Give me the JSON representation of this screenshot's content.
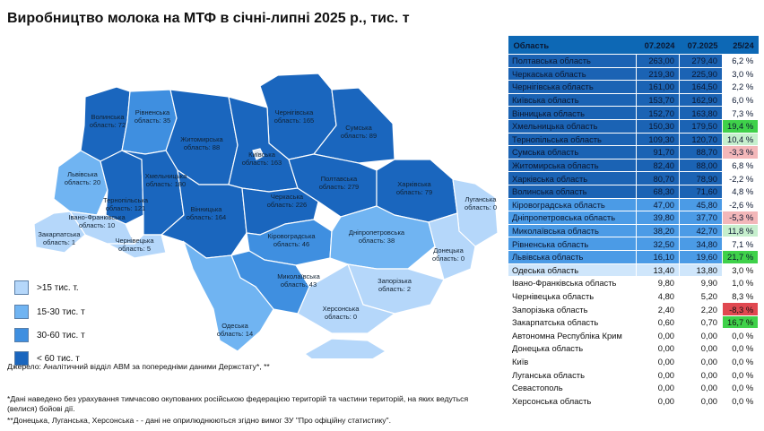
{
  "title": "Виробництво молока на МТФ в січні-липні 2025 р., тис. т",
  "colors": {
    "lt15": "#b5d7fa",
    "r15_30": "#70b4f2",
    "r30_60": "#3f8fe0",
    "gt60": "#1a66be",
    "stroke": "#ffffff"
  },
  "legend": [
    {
      "label": ">15 тис. т.",
      "color": "#b5d7fa"
    },
    {
      "label": "15-30 тис. т",
      "color": "#70b4f2"
    },
    {
      "label": "30-60 тис. т",
      "color": "#3f8fe0"
    },
    {
      "label": "< 60 тис. т",
      "color": "#1a66be"
    }
  ],
  "notes": {
    "source": "Джерело: Аналітичний відділ АВМ за попередніми даними Держстату*, **",
    "note1": "*Дані наведено без урахування тимчасово окупованих російською федерацією територій та частини територій, на яких ведуться (велися) бойові дії.",
    "note2": "**Донецька, Луганська, Херсонська - - дані не оприлюднюються згідно вимог ЗУ \"Про офіційну статистику\"."
  },
  "map_labels": [
    {
      "l1": "Волинська",
      "l2": "область: 72"
    },
    {
      "l1": "Рівненська",
      "l2": "область: 35"
    },
    {
      "l1": "Житомирська",
      "l2": "область: 88"
    },
    {
      "l1": "Чернігівська",
      "l2": "область: 165"
    },
    {
      "l1": "Сумська",
      "l2": "область: 89"
    },
    {
      "l1": "Київська",
      "l2": "область: 163"
    },
    {
      "l1": "Львівська",
      "l2": "область: 20"
    },
    {
      "l1": "Хмельницька",
      "l2": "область: 180"
    },
    {
      "l1": "Тернопільська",
      "l2": "область: 121"
    },
    {
      "l1": "Вінницька",
      "l2": "область: 164"
    },
    {
      "l1": "Черкаська",
      "l2": "область: 226"
    },
    {
      "l1": "Полтавська",
      "l2": "область: 279"
    },
    {
      "l1": "Харківська",
      "l2": "область: 79"
    },
    {
      "l1": "Луганська",
      "l2": "область: 0"
    },
    {
      "l1": "Івано-Франківська",
      "l2": "область: 10"
    },
    {
      "l1": "Закарпатська",
      "l2": "область: 1"
    },
    {
      "l1": "Чернівецька",
      "l2": "область: 5"
    },
    {
      "l1": "Кіровоградська",
      "l2": "область: 46"
    },
    {
      "l1": "Дніпропетровська",
      "l2": "область: 38"
    },
    {
      "l1": "Донецька",
      "l2": "область: 0"
    },
    {
      "l1": "Миколаївська",
      "l2": "область: 43"
    },
    {
      "l1": "Запорізька",
      "l2": "область: 2"
    },
    {
      "l1": "Херсонська",
      "l2": "область: 0"
    },
    {
      "l1": "Одеська",
      "l2": "область: 14"
    }
  ],
  "table": {
    "headers": [
      "Область",
      "07.2024",
      "07.2025",
      "25/24"
    ],
    "rows": [
      {
        "name": "Полтавська область",
        "v24": "263,00",
        "v25": "279,40",
        "pct": "6,2 %",
        "tier": "dark",
        "pc": "neutral"
      },
      {
        "name": "Черкаська область",
        "v24": "219,30",
        "v25": "225,90",
        "pct": "3,0 %",
        "tier": "dark",
        "pc": "neutral"
      },
      {
        "name": "Чернігівська область",
        "v24": "161,00",
        "v25": "164,50",
        "pct": "2,2 %",
        "tier": "dark",
        "pc": "neutral"
      },
      {
        "name": "Київська область",
        "v24": "153,70",
        "v25": "162,90",
        "pct": "6,0 %",
        "tier": "dark",
        "pc": "neutral"
      },
      {
        "name": "Вінницька область",
        "v24": "152,70",
        "v25": "163,80",
        "pct": "7,3 %",
        "tier": "dark",
        "pc": "neutral"
      },
      {
        "name": "Хмельницька область",
        "v24": "150,30",
        "v25": "179,50",
        "pct": "19,4 %",
        "tier": "dark",
        "pc": "g-strong"
      },
      {
        "name": "Тернопільська область",
        "v24": "109,30",
        "v25": "120,70",
        "pct": "10,4 %",
        "tier": "dark",
        "pc": "g-light"
      },
      {
        "name": "Сумська область",
        "v24": "91,70",
        "v25": "88,70",
        "pct": "-3,3 %",
        "tier": "dark",
        "pc": "r-light"
      },
      {
        "name": "Житомирська область",
        "v24": "82,40",
        "v25": "88,00",
        "pct": "6,8 %",
        "tier": "dark",
        "pc": "neutral"
      },
      {
        "name": "Харківська область",
        "v24": "80,70",
        "v25": "78,90",
        "pct": "-2,2 %",
        "tier": "dark",
        "pc": "neutral"
      },
      {
        "name": "Волинська область",
        "v24": "68,30",
        "v25": "71,60",
        "pct": "4,8 %",
        "tier": "dark",
        "pc": "neutral"
      },
      {
        "name": "Кіровоградська область",
        "v24": "47,00",
        "v25": "45,80",
        "pct": "-2,6 %",
        "tier": "mid",
        "pc": "neutral"
      },
      {
        "name": "Дніпропетровська область",
        "v24": "39,80",
        "v25": "37,70",
        "pct": "-5,3 %",
        "tier": "mid",
        "pc": "r-light"
      },
      {
        "name": "Миколаївська область",
        "v24": "38,20",
        "v25": "42,70",
        "pct": "11,8 %",
        "tier": "mid",
        "pc": "g-light"
      },
      {
        "name": "Рівненська область",
        "v24": "32,50",
        "v25": "34,80",
        "pct": "7,1 %",
        "tier": "mid",
        "pc": "neutral"
      },
      {
        "name": "Львівська область",
        "v24": "16,10",
        "v25": "19,60",
        "pct": "21,7 %",
        "tier": "mid",
        "pc": "g-strong"
      },
      {
        "name": "Одеська область",
        "v24": "13,40",
        "v25": "13,80",
        "pct": "3,0 %",
        "tier": "light",
        "pc": "neutral"
      },
      {
        "name": "Івано-Франківська область",
        "v24": "9,80",
        "v25": "9,90",
        "pct": "1,0 %",
        "tier": "empty",
        "pc": "neutral"
      },
      {
        "name": "Чернівецька область",
        "v24": "4,80",
        "v25": "5,20",
        "pct": "8,3 %",
        "tier": "empty",
        "pc": "neutral"
      },
      {
        "name": "Запорізька область",
        "v24": "2,40",
        "v25": "2,20",
        "pct": "-8,3 %",
        "tier": "empty",
        "pc": "r-strong"
      },
      {
        "name": "Закарпатська область",
        "v24": "0,60",
        "v25": "0,70",
        "pct": "16,7 %",
        "tier": "empty",
        "pc": "g-strong"
      },
      {
        "name": "Автономна Республіка Крим",
        "v24": "0,00",
        "v25": "0,00",
        "pct": "0,0 %",
        "tier": "empty",
        "pc": "neutral"
      },
      {
        "name": "Донецька область",
        "v24": "0,00",
        "v25": "0,00",
        "pct": "0,0 %",
        "tier": "empty",
        "pc": "neutral"
      },
      {
        "name": "Київ",
        "v24": "0,00",
        "v25": "0,00",
        "pct": "0,0 %",
        "tier": "empty",
        "pc": "neutral"
      },
      {
        "name": "Луганська область",
        "v24": "0,00",
        "v25": "0,00",
        "pct": "0,0 %",
        "tier": "empty",
        "pc": "neutral"
      },
      {
        "name": "Севастополь",
        "v24": "0,00",
        "v25": "0,00",
        "pct": "0,0 %",
        "tier": "empty",
        "pc": "neutral"
      },
      {
        "name": "Херсонська область",
        "v24": "0,00",
        "v25": "0,00",
        "pct": "0,0 %",
        "tier": "empty",
        "pc": "neutral"
      }
    ]
  }
}
